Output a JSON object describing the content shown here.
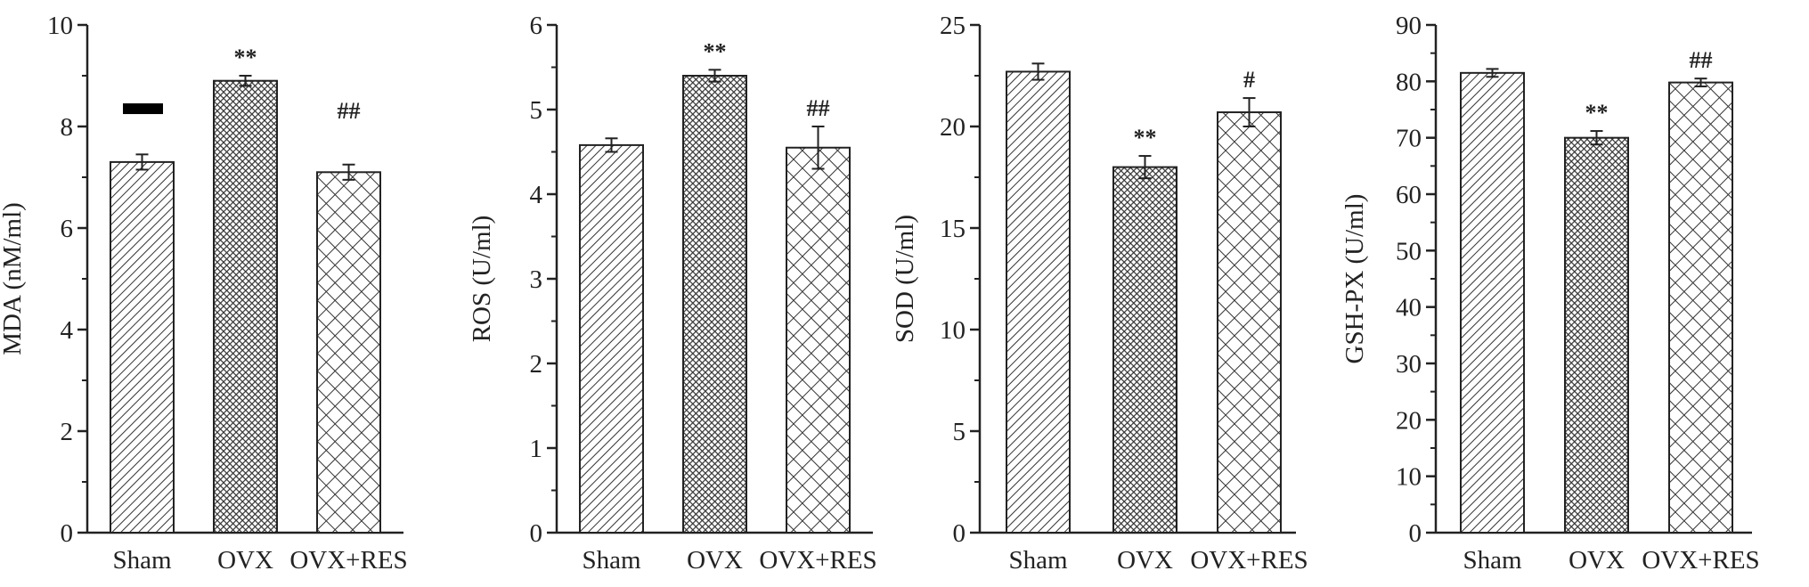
{
  "chart_data": [
    {
      "type": "bar",
      "title": "",
      "xlabel": "",
      "ylabel": "MDA (nM/ml)",
      "categories": [
        "Sham",
        "OVX",
        "OVX+RES"
      ],
      "values": [
        7.3,
        8.9,
        7.1
      ],
      "errors": [
        0.15,
        0.1,
        0.15
      ],
      "annotations": [
        "",
        "**",
        "##"
      ],
      "ylim": [
        0,
        10
      ],
      "major_ticks": [
        0,
        2,
        4,
        6,
        8,
        10
      ],
      "minor_step": 1,
      "extra_mark_value": 8.35
    },
    {
      "type": "bar",
      "title": "",
      "xlabel": "",
      "ylabel": "ROS  (U/ml)",
      "categories": [
        "Sham",
        "OVX",
        "OVX+RES"
      ],
      "values": [
        4.58,
        5.4,
        4.55
      ],
      "errors": [
        0.08,
        0.07,
        0.25
      ],
      "annotations": [
        "",
        "**",
        "##"
      ],
      "ylim": [
        0,
        6
      ],
      "major_ticks": [
        0,
        1,
        2,
        3,
        4,
        5,
        6
      ],
      "minor_step": 0.5
    },
    {
      "type": "bar",
      "title": "",
      "xlabel": "",
      "ylabel": "SOD  (U/ml)",
      "categories": [
        "Sham",
        "OVX",
        "OVX+RES"
      ],
      "values": [
        22.7,
        18.0,
        20.7
      ],
      "errors": [
        0.4,
        0.55,
        0.7
      ],
      "annotations": [
        "",
        "**",
        "#"
      ],
      "ylim": [
        0,
        25
      ],
      "major_ticks": [
        0,
        5,
        10,
        15,
        20,
        25
      ],
      "minor_step": 2.5
    },
    {
      "type": "bar",
      "title": "",
      "xlabel": "",
      "ylabel": "GSH-PX (U/ml)",
      "categories": [
        "Sham",
        "OVX",
        "OVX+RES"
      ],
      "values": [
        81.5,
        70.0,
        79.8
      ],
      "errors": [
        0.7,
        1.2,
        0.7
      ],
      "annotations": [
        "",
        "**",
        "##"
      ],
      "ylim": [
        0,
        90
      ],
      "major_ticks": [
        0,
        10,
        20,
        30,
        40,
        50,
        60,
        70,
        80,
        90
      ],
      "minor_step": 5
    }
  ],
  "colors": {
    "ink": "#222222",
    "ovx_fill": "#555555"
  }
}
